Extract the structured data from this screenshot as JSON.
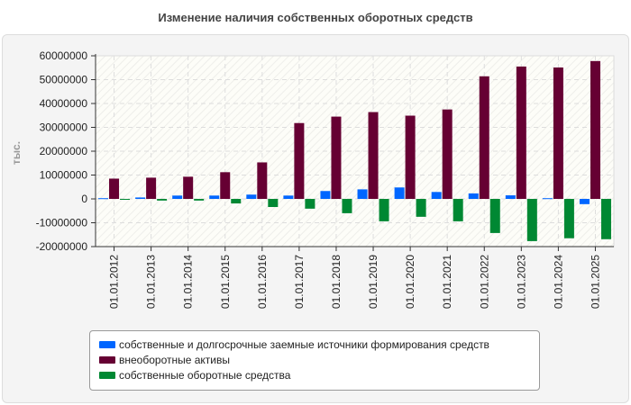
{
  "chart_data": {
    "type": "bar",
    "title": "Изменение наличия собственных оборотных средств",
    "ylabel": "тыс.",
    "xlabel": "",
    "ylim": [
      -20000000,
      60000000
    ],
    "yticks": [
      60000000,
      50000000,
      40000000,
      30000000,
      20000000,
      10000000,
      0,
      -10000000,
      -20000000
    ],
    "grid": true,
    "legend_position": "bottom",
    "categories": [
      "01.01.2012",
      "01.01.2013",
      "01.01.2014",
      "01.01.2015",
      "01.01.2016",
      "01.01.2017",
      "01.01.2018",
      "01.01.2019",
      "01.01.2020",
      "01.01.2021",
      "01.01.2022",
      "01.01.2023",
      "01.01.2024",
      "01.01.2025"
    ],
    "series": [
      {
        "name": "собственные и долгосрочные заемные источники формирования средств",
        "color": "#0066ff",
        "values": [
          300000,
          600000,
          1400000,
          1400000,
          1800000,
          1400000,
          3300000,
          4000000,
          4800000,
          2900000,
          2300000,
          1500000,
          300000,
          -2200000
        ]
      },
      {
        "name": "внеоборотные активы",
        "color": "#660033",
        "values": [
          8500000,
          8900000,
          9300000,
          11200000,
          15300000,
          31800000,
          34500000,
          36400000,
          34900000,
          37500000,
          51400000,
          55500000,
          55100000,
          57800000
        ]
      },
      {
        "name": "собственные оборотные средства",
        "color": "#008833",
        "values": [
          -300000,
          -700000,
          -700000,
          -1900000,
          -3400000,
          -4100000,
          -6000000,
          -9400000,
          -7500000,
          -9400000,
          -14300000,
          -17700000,
          -16500000,
          -16900000
        ]
      }
    ]
  }
}
